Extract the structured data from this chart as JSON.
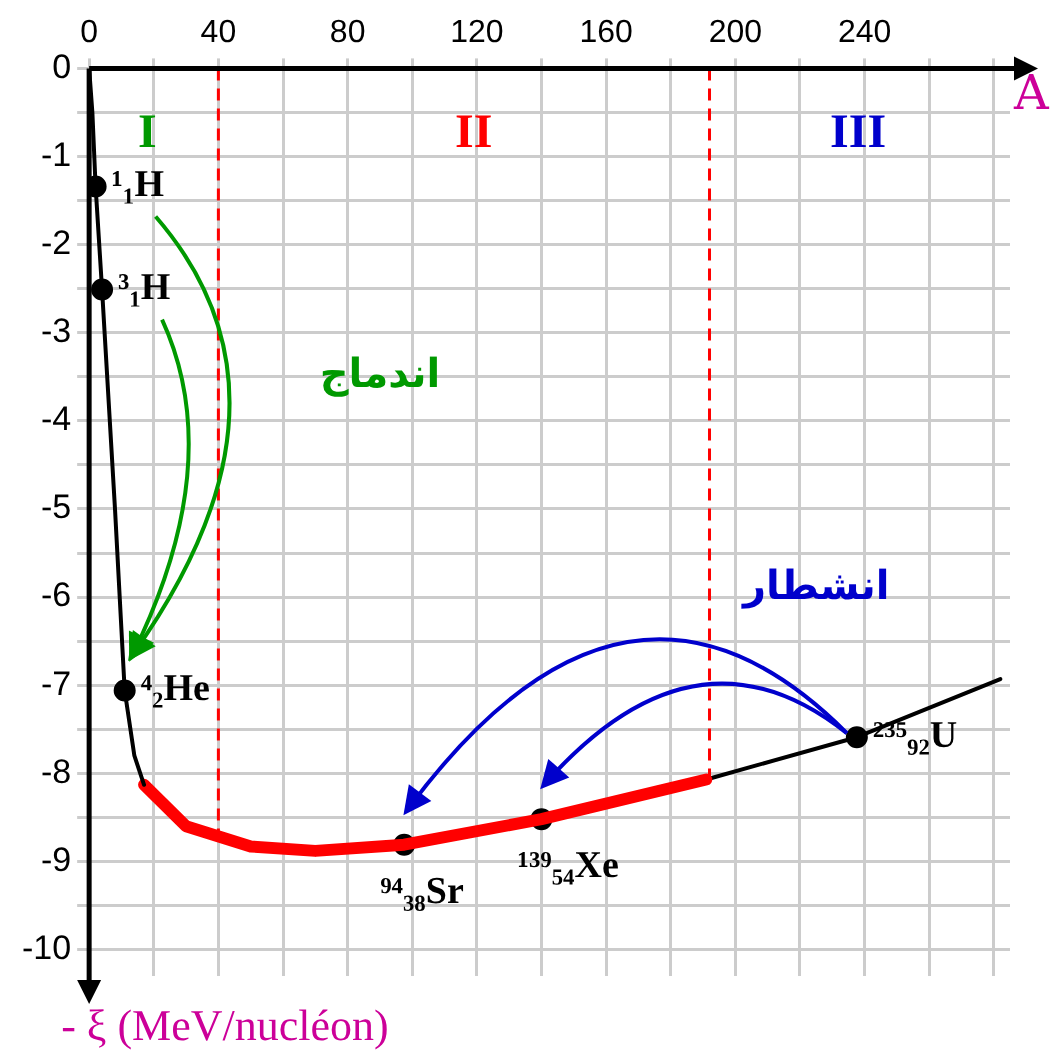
{
  "chart_data": {
    "type": "line",
    "xlabel": "A",
    "xlim": [
      0,
      285
    ],
    "xticks": [
      0,
      {
        "value": 20,
        "label": null
      },
      40,
      {
        "value": 60,
        "label": null
      },
      80,
      {
        "value": 100,
        "label": null
      },
      120,
      {
        "value": 140,
        "label": null
      },
      160,
      {
        "value": 180,
        "label": null
      },
      200,
      {
        "value": 220,
        "label": null
      },
      240,
      {
        "value": 260,
        "label": null
      },
      {
        "value": 280,
        "label": null
      }
    ],
    "ylim": [
      -10.3,
      0
    ],
    "yticks": [
      -10,
      {
        "value": -9.5,
        "label": null
      },
      -9,
      {
        "value": -8.5,
        "label": null
      },
      -8,
      {
        "value": -7.5,
        "label": null
      },
      -7,
      {
        "value": -6.5,
        "label": null
      },
      -6,
      {
        "value": -5.5,
        "label": null
      },
      -5,
      {
        "value": -4.5,
        "label": null
      },
      -4,
      {
        "value": -3.5,
        "label": null
      },
      -3,
      {
        "value": -2.5,
        "label": null
      },
      -2,
      {
        "value": -1.5,
        "label": null
      },
      -1,
      {
        "value": -0.5,
        "label": null
      },
      0
    ],
    "grid": true,
    "legend": false,
    "marker": "none",
    "line_style": "solid",
    "series": [
      {
        "color": "#000000",
        "x": [
          0,
          1,
          2,
          4,
          8,
          11,
          14,
          17
        ],
        "values": [
          0,
          -0.5,
          -1.34,
          -2.51,
          -5,
          -7.06,
          -7.8,
          -8.13
        ]
      },
      {
        "color": "#ff0000",
        "x": [
          17,
          30,
          50,
          70,
          97.5,
          140,
          191
        ],
        "values": [
          -8.13,
          -8.6,
          -8.83,
          -8.88,
          -8.81,
          -8.52,
          -8.07
        ]
      },
      {
        "color": "#000000",
        "x": [
          191,
          237.6,
          282
        ],
        "values": [
          -8.07,
          -7.59,
          -6.93
        ]
      },
      {
        "type": "scatter",
        "color": "#000000",
        "marker": "circle",
        "x": [
          2,
          4,
          11,
          97.5,
          140,
          237.6
        ],
        "values": [
          -1.34,
          -2.51,
          -7.06,
          -8.81,
          -8.52,
          -7.59
        ],
        "value_labels": [
          "¹₁H",
          "³₁H",
          "⁴₂He",
          "⁹⁴₃₈Sr",
          "¹³⁹₅₄Xe",
          "²³⁵₉₂U"
        ]
      }
    ],
    "ref_lines": [
      {
        "axis": "x",
        "value": 40,
        "color": "#ff0000",
        "line_style": "dashed"
      },
      {
        "axis": "x",
        "value": 192,
        "color": "#ff0000",
        "line_style": "dashed"
      }
    ],
    "annotations": [
      "I",
      "II",
      "III",
      "اندماج",
      "انشطار",
      "- ξ (MeV/nucléon)"
    ]
  }
}
